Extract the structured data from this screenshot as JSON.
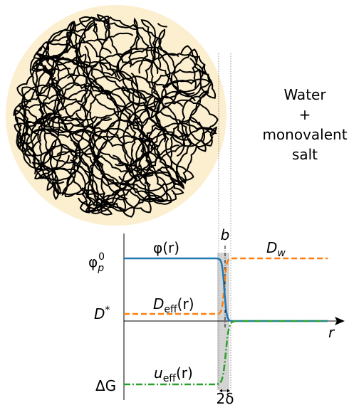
{
  "side_text": [
    "Water",
    "+",
    "monovalent",
    "salt"
  ],
  "labels": {
    "b": "b",
    "phi": "φ(r)",
    "dw": {
      "base": "D",
      "sub": "w"
    },
    "phi_p0": {
      "base": "φ",
      "sub": "p",
      "sup": "0"
    },
    "deff": {
      "base": "D",
      "sub": "eff",
      "tail": "(r)"
    },
    "dstar": {
      "base": "D",
      "sup": "*"
    },
    "r": "r",
    "dg": "ΔG",
    "ueff": {
      "base": "u",
      "sub": "eff",
      "tail": "(r)"
    },
    "two_delta": "2δ"
  }
}
